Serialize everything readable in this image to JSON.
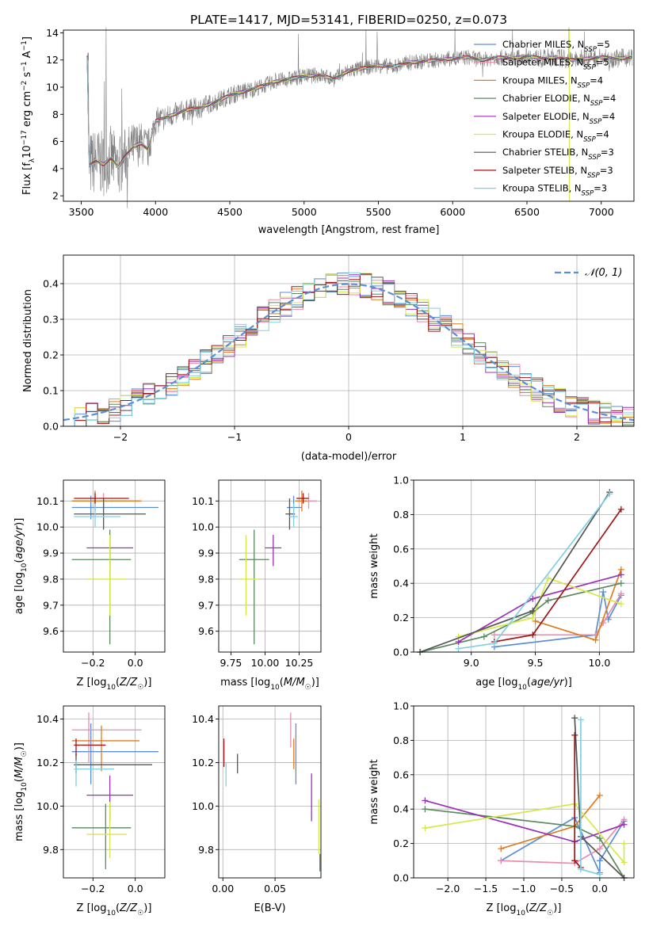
{
  "figure": {
    "title": "PLATE=1417, MJD=53141, FIBERID=0250, z=0.073",
    "models": [
      {
        "name": "Chabrier MILES, N_SSP=5",
        "label": "Chabrier MILES, N",
        "sub": "SSP",
        "tail": "=5",
        "color": "#5a8fd6"
      },
      {
        "name": "Salpeter MILES, N_SSP=5",
        "label": "Salpeter MILES, N",
        "sub": "SSP",
        "tail": "=5",
        "color": "#e88dab"
      },
      {
        "name": "Kroupa MILES, N_SSP=4",
        "label": "Kroupa MILES, N",
        "sub": "SSP",
        "tail": "=4",
        "color": "#e07b1f"
      },
      {
        "name": "Chabrier ELODIE, N_SSP=4",
        "label": "Chabrier ELODIE, N",
        "sub": "SSP",
        "tail": "=4",
        "color": "#5a8a5e"
      },
      {
        "name": "Salpeter ELODIE, N_SSP=4",
        "label": "Salpeter ELODIE, N",
        "sub": "SSP",
        "tail": "=4",
        "color": "#9b30b8"
      },
      {
        "name": "Kroupa ELODIE, N_SSP=4",
        "label": "Kroupa ELODIE, N",
        "sub": "SSP",
        "tail": "=4",
        "color": "#d5e84a"
      },
      {
        "name": "Chabrier STELIB, N_SSP=3",
        "label": "Chabrier STELIB, N",
        "sub": "SSP",
        "tail": "=3",
        "color": "#555555"
      },
      {
        "name": "Salpeter STELIB, N_SSP=3",
        "label": "Salpeter STELIB, N",
        "sub": "SSP",
        "tail": "=3",
        "color": "#a01515"
      },
      {
        "name": "Kroupa STELIB, N_SSP=3",
        "label": "Kroupa STELIB, N",
        "sub": "SSP",
        "tail": "=3",
        "color": "#7fd0e6"
      }
    ]
  },
  "chart_data": [
    {
      "id": "spectrum",
      "type": "line",
      "xlabel": "wavelength [Angstrom, rest frame]",
      "ylabel": "Flux [fλ10⁻¹⁷ erg cm⁻² s⁻¹ A⁻¹]",
      "xlim": [
        3380,
        7220
      ],
      "ylim": [
        1.6,
        14.2
      ],
      "xticks": [
        3500,
        4000,
        4500,
        5000,
        5500,
        6000,
        6500,
        7000
      ],
      "yticks": [
        2,
        4,
        6,
        8,
        10,
        12,
        14
      ],
      "data_color": "#808080",
      "x": [
        3550,
        3600,
        3650,
        3700,
        3750,
        3800,
        3850,
        3900,
        3950,
        4000,
        4100,
        4200,
        4300,
        4400,
        4500,
        4600,
        4700,
        4800,
        4900,
        5000,
        5100,
        5200,
        5300,
        5400,
        5500,
        5600,
        5700,
        5800,
        5900,
        6000,
        6100,
        6200,
        6300,
        6400,
        6500,
        6600,
        6700,
        6800,
        6900,
        7000,
        7100,
        7200
      ],
      "model": [
        4.2,
        4.6,
        4.3,
        4.8,
        4.1,
        5.0,
        5.6,
        5.9,
        5.4,
        7.5,
        7.9,
        8.3,
        8.5,
        8.9,
        9.4,
        9.7,
        10.0,
        10.4,
        10.6,
        10.8,
        10.9,
        10.6,
        11.2,
        11.4,
        11.6,
        11.5,
        11.8,
        11.9,
        12.0,
        12.1,
        12.2,
        12.0,
        12.2,
        12.1,
        12.3,
        12.1,
        12.2,
        12.0,
        12.1,
        12.2,
        12.1,
        12.2
      ],
      "noise_amplitude": [
        2.5,
        2.5,
        2.4,
        2.4,
        2.3,
        2.1,
        1.8,
        1.6,
        1.5,
        1.0,
        0.9,
        0.8,
        0.8,
        0.7,
        0.7,
        0.7,
        0.6,
        0.6,
        0.6,
        0.6,
        0.6,
        0.6,
        0.6,
        0.6,
        0.6,
        0.6,
        0.6,
        0.6,
        0.6,
        0.6,
        0.6,
        0.6,
        0.6,
        0.6,
        0.6,
        0.7,
        0.7,
        0.7,
        0.7,
        0.7,
        0.7,
        0.7
      ]
    },
    {
      "id": "residual_hist",
      "type": "histogram",
      "xlabel": "(data-model)/error",
      "ylabel": "Normed distribution",
      "xlim": [
        -2.5,
        2.5
      ],
      "ylim": [
        0,
        0.48
      ],
      "xticks": [
        -2,
        -1,
        0,
        1,
        2
      ],
      "yticks": [
        0.0,
        0.1,
        0.2,
        0.3,
        0.4
      ],
      "bin_width": 0.1,
      "reference_curve": {
        "label": "𝒩(0, 1)",
        "mean": 0,
        "sigma": 1,
        "color": "#5a8fd6"
      }
    },
    {
      "id": "age_vs_Z",
      "type": "errorbar",
      "xlabel": "Z [log10(Z/Z☉)]",
      "ylabel": "age  [log10(age/yr)]",
      "xlim": [
        -0.34,
        0.14
      ],
      "ylim": [
        9.52,
        10.18
      ],
      "xticks": [
        -0.2,
        0.0
      ],
      "yticks": [
        9.6,
        9.7,
        9.8,
        9.9,
        10.0,
        10.1
      ],
      "points": [
        {
          "x": -0.21,
          "xlo": -0.3,
          "xhi": 0.11,
          "y": 10.075,
          "ylo": 10.03,
          "yhi": 10.12,
          "c": 0
        },
        {
          "x": -0.15,
          "xlo": -0.3,
          "xhi": 0.02,
          "y": 10.1,
          "ylo": 10.07,
          "yhi": 10.13,
          "c": 1
        },
        {
          "x": -0.19,
          "xlo": -0.3,
          "xhi": 0.03,
          "y": 10.1,
          "ylo": 10.06,
          "yhi": 10.14,
          "c": 2
        },
        {
          "x": -0.12,
          "xlo": -0.3,
          "xhi": -0.02,
          "y": 9.875,
          "ylo": 9.55,
          "yhi": 9.99,
          "c": 3
        },
        {
          "x": -0.12,
          "xlo": -0.23,
          "xhi": -0.01,
          "y": 9.92,
          "ylo": 9.85,
          "yhi": 9.97,
          "c": 4
        },
        {
          "x": -0.12,
          "xlo": -0.23,
          "xhi": -0.04,
          "y": 9.8,
          "ylo": 9.66,
          "yhi": 9.97,
          "c": 5
        },
        {
          "x": -0.15,
          "xlo": -0.29,
          "xhi": 0.05,
          "y": 10.05,
          "ylo": 9.99,
          "yhi": 10.11,
          "c": 6
        },
        {
          "x": -0.19,
          "xlo": -0.29,
          "xhi": -0.03,
          "y": 10.11,
          "ylo": 10.09,
          "yhi": 10.13,
          "c": 7
        },
        {
          "x": -0.19,
          "xlo": -0.29,
          "xhi": -0.07,
          "y": 10.04,
          "ylo": 10.0,
          "yhi": 10.09,
          "c": 8
        }
      ]
    },
    {
      "id": "age_vs_mass",
      "type": "errorbar",
      "xlabel": "mass [log10(M/M☉)]",
      "ylabel": "",
      "xlim": [
        9.66,
        10.41
      ],
      "ylim": [
        9.52,
        10.18
      ],
      "xticks": [
        9.75,
        10.0,
        10.25
      ],
      "yticks": [
        9.6,
        9.7,
        9.8,
        9.9,
        10.0,
        10.1
      ],
      "points": [
        {
          "x": 10.21,
          "xlo": 10.16,
          "xhi": 10.27,
          "y": 10.075,
          "ylo": 10.03,
          "yhi": 10.12,
          "c": 0
        },
        {
          "x": 10.32,
          "xlo": 10.23,
          "xhi": 10.38,
          "y": 10.1,
          "ylo": 10.07,
          "yhi": 10.13,
          "c": 1
        },
        {
          "x": 10.27,
          "xlo": 10.22,
          "xhi": 10.31,
          "y": 10.1,
          "ylo": 10.06,
          "yhi": 10.14,
          "c": 2
        },
        {
          "x": 9.92,
          "xlo": 9.81,
          "xhi": 10.03,
          "y": 9.875,
          "ylo": 9.55,
          "yhi": 9.99,
          "c": 3
        },
        {
          "x": 10.06,
          "xlo": 10.0,
          "xhi": 10.12,
          "y": 9.92,
          "ylo": 9.85,
          "yhi": 9.97,
          "c": 4
        },
        {
          "x": 9.86,
          "xlo": 9.81,
          "xhi": 9.96,
          "y": 9.8,
          "ylo": 9.66,
          "yhi": 9.97,
          "c": 5
        },
        {
          "x": 10.18,
          "xlo": 10.15,
          "xhi": 10.22,
          "y": 10.05,
          "ylo": 9.99,
          "yhi": 10.11,
          "c": 6
        },
        {
          "x": 10.28,
          "xlo": 10.23,
          "xhi": 10.32,
          "y": 10.11,
          "ylo": 10.09,
          "yhi": 10.13,
          "c": 7
        },
        {
          "x": 10.21,
          "xlo": 10.18,
          "xhi": 10.24,
          "y": 10.04,
          "ylo": 10.0,
          "yhi": 10.09,
          "c": 8
        }
      ]
    },
    {
      "id": "weight_vs_age",
      "type": "line",
      "xlabel": "age  [log10(age/yr)]",
      "ylabel": "mass weight",
      "xlim": [
        8.55,
        10.27
      ],
      "ylim": [
        0,
        1.0
      ],
      "xticks": [
        9.0,
        9.5,
        10.0
      ],
      "yticks": [
        0.0,
        0.2,
        0.4,
        0.6,
        0.8,
        1.0
      ],
      "series": [
        {
          "c": 0,
          "x": [
            9.18,
            9.97,
            10.03,
            10.07,
            10.17
          ],
          "y": [
            0.03,
            0.1,
            0.35,
            0.19,
            0.33
          ]
        },
        {
          "c": 1,
          "x": [
            9.18,
            9.97,
            10.03,
            10.17
          ],
          "y": [
            0.1,
            0.1,
            0.17,
            0.34
          ]
        },
        {
          "c": 2,
          "x": [
            9.5,
            9.97,
            10.17
          ],
          "y": [
            0.18,
            0.07,
            0.48
          ]
        },
        {
          "c": 3,
          "x": [
            8.6,
            9.1,
            9.48,
            9.6,
            10.17
          ],
          "y": [
            0.0,
            0.09,
            0.23,
            0.3,
            0.4
          ]
        },
        {
          "c": 4,
          "x": [
            8.9,
            9.48,
            10.17
          ],
          "y": [
            0.06,
            0.31,
            0.45
          ]
        },
        {
          "c": 5,
          "x": [
            8.9,
            9.48,
            9.6,
            10.17
          ],
          "y": [
            0.09,
            0.2,
            0.43,
            0.28
          ]
        },
        {
          "c": 6,
          "x": [
            8.6,
            9.48,
            10.08
          ],
          "y": [
            0.0,
            0.24,
            0.93
          ]
        },
        {
          "c": 7,
          "x": [
            9.18,
            9.48,
            10.17
          ],
          "y": [
            0.06,
            0.1,
            0.83
          ]
        },
        {
          "c": 8,
          "x": [
            8.9,
            9.18,
            10.08
          ],
          "y": [
            0.02,
            0.05,
            0.92
          ]
        }
      ]
    },
    {
      "id": "mass_vs_Z",
      "type": "errorbar",
      "xlabel": "Z [log10(Z/Z☉)]",
      "ylabel": "mass [log10(M/M☉)]",
      "xlim": [
        -0.34,
        0.14
      ],
      "ylim": [
        9.67,
        10.46
      ],
      "xticks": [
        -0.2,
        0.0
      ],
      "yticks": [
        9.8,
        10.0,
        10.2,
        10.4
      ],
      "points": [
        {
          "x": -0.21,
          "xlo": -0.3,
          "xhi": 0.11,
          "y": 10.25,
          "ylo": 10.1,
          "yhi": 10.38,
          "c": 0
        },
        {
          "x": -0.22,
          "xlo": -0.3,
          "xhi": 0.03,
          "y": 10.35,
          "ylo": 10.2,
          "yhi": 10.43,
          "c": 1
        },
        {
          "x": -0.16,
          "xlo": -0.3,
          "xhi": 0.02,
          "y": 10.3,
          "ylo": 10.16,
          "yhi": 10.37,
          "c": 2
        },
        {
          "x": -0.14,
          "xlo": -0.3,
          "xhi": -0.02,
          "y": 9.9,
          "ylo": 9.71,
          "yhi": 10.01,
          "c": 3
        },
        {
          "x": -0.12,
          "xlo": -0.23,
          "xhi": -0.01,
          "y": 10.05,
          "ylo": 9.93,
          "yhi": 10.14,
          "c": 4
        },
        {
          "x": -0.12,
          "xlo": -0.23,
          "xhi": -0.04,
          "y": 9.87,
          "ylo": 9.76,
          "yhi": 10.02,
          "c": 5
        },
        {
          "x": -0.28,
          "xlo": -0.29,
          "xhi": 0.08,
          "y": 10.19,
          "ylo": 10.15,
          "yhi": 10.24,
          "c": 6
        },
        {
          "x": -0.28,
          "xlo": -0.29,
          "xhi": -0.14,
          "y": 10.28,
          "ylo": 10.23,
          "yhi": 10.31,
          "c": 7
        },
        {
          "x": -0.28,
          "xlo": -0.29,
          "xhi": -0.1,
          "y": 10.17,
          "ylo": 10.09,
          "yhi": 10.21,
          "c": 8
        }
      ]
    },
    {
      "id": "mass_vs_ebv",
      "type": "errorbar",
      "xlabel": "E(B-V)",
      "ylabel": "",
      "xlim": [
        -0.004,
        0.094
      ],
      "ylim": [
        9.67,
        10.46
      ],
      "xticks": [
        0.0,
        0.05
      ],
      "yticks": [
        9.8,
        10.0,
        10.2,
        10.4
      ],
      "points": [
        {
          "x": 0.07,
          "y": 10.25,
          "ylo": 10.1,
          "yhi": 10.38,
          "c": 0
        },
        {
          "x": 0.065,
          "y": 10.35,
          "ylo": 10.27,
          "yhi": 10.43,
          "c": 1
        },
        {
          "x": 0.068,
          "y": 10.25,
          "ylo": 10.17,
          "yhi": 10.31,
          "c": 2
        },
        {
          "x": 0.093,
          "y": 9.75,
          "ylo": 9.7,
          "yhi": 9.78,
          "c": 3
        },
        {
          "x": 0.085,
          "y": 10.05,
          "ylo": 9.93,
          "yhi": 10.15,
          "c": 4
        },
        {
          "x": 0.092,
          "y": 9.9,
          "ylo": 9.78,
          "yhi": 10.03,
          "c": 5
        },
        {
          "x": 0.014,
          "y": 10.2,
          "ylo": 10.15,
          "yhi": 10.24,
          "c": 6
        },
        {
          "x": 0.001,
          "y": 10.25,
          "ylo": 10.18,
          "yhi": 10.31,
          "c": 7
        },
        {
          "x": 0.003,
          "y": 10.15,
          "ylo": 10.09,
          "yhi": 10.2,
          "c": 8
        }
      ]
    },
    {
      "id": "weight_vs_Z",
      "type": "line",
      "xlabel": "Z [log10(Z/Z☉)]",
      "ylabel": "mass weight",
      "xlim": [
        -2.45,
        0.45
      ],
      "ylim": [
        0,
        1.0
      ],
      "xticks": [
        -2.0,
        -1.5,
        -1.0,
        -0.5,
        0.0
      ],
      "yticks": [
        0.0,
        0.2,
        0.4,
        0.6,
        0.8,
        1.0
      ],
      "series": [
        {
          "c": 0,
          "x": [
            -1.3,
            -0.33,
            0.0,
            0.0,
            0.32
          ],
          "y": [
            0.1,
            0.35,
            0.03,
            0.1,
            0.33
          ]
        },
        {
          "c": 1,
          "x": [
            -1.3,
            -0.33,
            0.0,
            0.32
          ],
          "y": [
            0.1,
            0.085,
            0.17,
            0.34
          ]
        },
        {
          "c": 2,
          "x": [
            -1.3,
            -0.33,
            0.0
          ],
          "y": [
            0.17,
            0.3,
            0.48
          ]
        },
        {
          "c": 3,
          "x": [
            -2.3,
            -0.33,
            0.0,
            0.32
          ],
          "y": [
            0.4,
            0.3,
            0.23,
            0.0
          ]
        },
        {
          "c": 4,
          "x": [
            -2.3,
            -0.33,
            0.32
          ],
          "y": [
            0.45,
            0.21,
            0.31
          ]
        },
        {
          "c": 5,
          "x": [
            -2.3,
            -0.33,
            0.32,
            0.32
          ],
          "y": [
            0.29,
            0.43,
            0.09,
            0.2
          ]
        },
        {
          "c": 6,
          "x": [
            -0.33,
            -0.25,
            0.32
          ],
          "y": [
            0.93,
            0.24,
            0.0
          ]
        },
        {
          "c": 7,
          "x": [
            -0.33,
            -0.33,
            -0.25
          ],
          "y": [
            0.83,
            0.1,
            0.06
          ]
        },
        {
          "c": 8,
          "x": [
            -0.25,
            -0.25,
            0.0
          ],
          "y": [
            0.92,
            0.05,
            0.02
          ]
        }
      ]
    }
  ]
}
